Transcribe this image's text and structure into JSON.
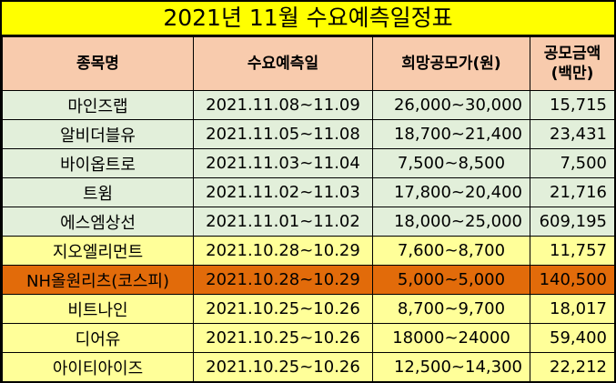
{
  "title": "2021년 11월 수요예측일정표",
  "headers": {
    "name": "종목명",
    "date": "수요예측일",
    "price": "희망공모가(원)",
    "amount_line1": "공모금액",
    "amount_line2": "(백만)"
  },
  "colors": {
    "title_bg": "#ffff00",
    "header_bg": "#f8cbad",
    "row_green": "#e2efda",
    "row_yellow": "#ffff99",
    "row_orange": "#e26b0a"
  },
  "rows": [
    {
      "name": "마인즈랩",
      "date": "2021.11.08~11.09",
      "price": "26,000~30,000",
      "amount": "15,715"
    },
    {
      "name": "알비더블유",
      "date": "2021.11.05~11.08",
      "price": "18,700~21,400",
      "amount": "23,431"
    },
    {
      "name": "바이옵트로",
      "date": "2021.11.03~11.04",
      "price": "7,500~8,500",
      "amount": "7,500"
    },
    {
      "name": "트윔",
      "date": "2021.11.02~11.03",
      "price": "17,800~20,400",
      "amount": "21,716"
    },
    {
      "name": "에스엠상선",
      "date": "2021.11.01~11.02",
      "price": "18,000~25,000",
      "amount": "609,195"
    },
    {
      "name": "지오엘리먼트",
      "date": "2021.10.28~10.29",
      "price": "7,600~8,700",
      "amount": "11,757"
    },
    {
      "name": "NH올원리츠(코스피)",
      "date": "2021.10.28~10.29",
      "price": "5,000~5,000",
      "amount": "140,500"
    },
    {
      "name": "비트나인",
      "date": "2021.10.25~10.26",
      "price": "8,700~9,700",
      "amount": "18,017"
    },
    {
      "name": "디어유",
      "date": "2021.10.25~10.26",
      "price": "18000~24000",
      "amount": "59,400"
    },
    {
      "name": "아이티아이즈",
      "date": "2021.10.25~10.26",
      "price": "12,500~14,300",
      "amount": "22,212"
    }
  ]
}
